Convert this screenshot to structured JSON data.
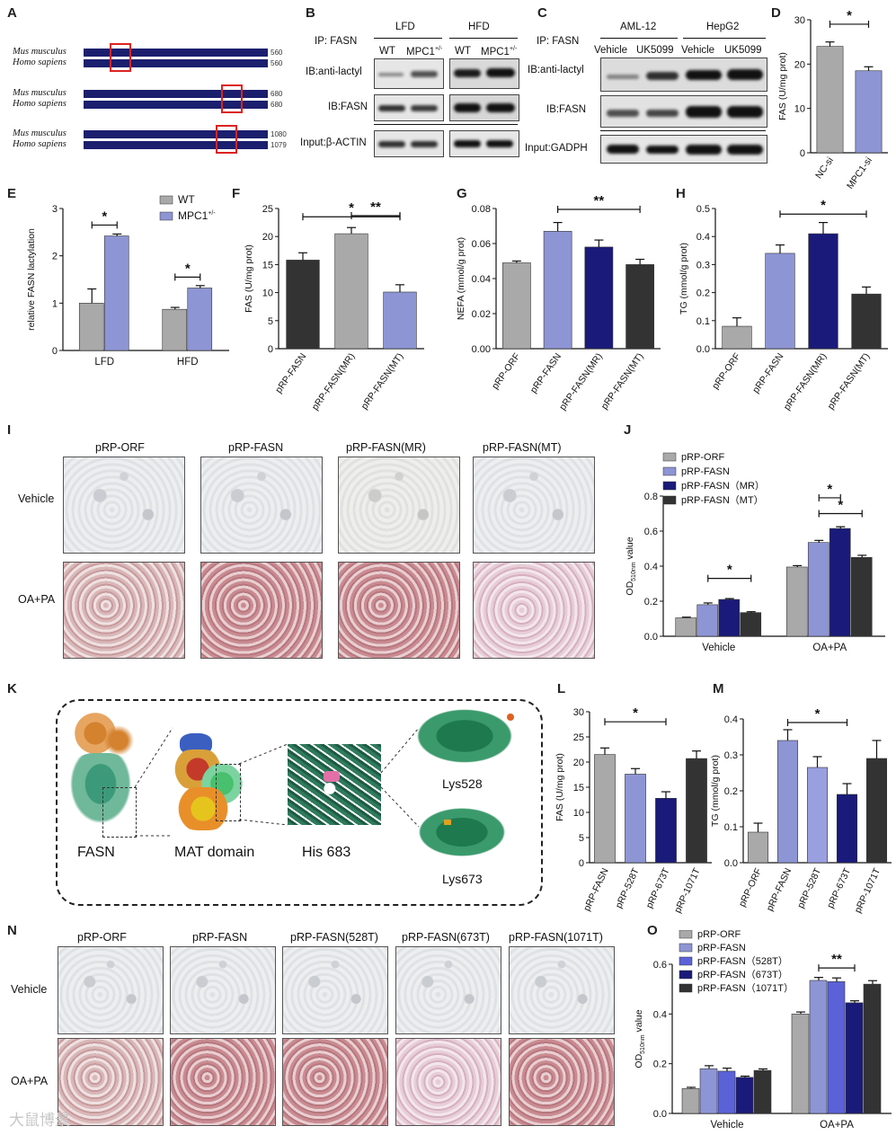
{
  "panel_labels": {
    "A": "A",
    "B": "B",
    "C": "C",
    "D": "D",
    "E": "E",
    "F": "F",
    "G": "G",
    "H": "H",
    "I": "I",
    "J": "J",
    "K": "K",
    "L": "L",
    "M": "M",
    "N": "N",
    "O": "O"
  },
  "panelA": {
    "rows": [
      {
        "species": "Mus musculus",
        "num": "560"
      },
      {
        "species": "Homo sapiens",
        "num": "560"
      },
      {
        "species": "Mus musculus",
        "num": "680"
      },
      {
        "species": "Homo sapiens",
        "num": "680"
      },
      {
        "species": "Mus musculus",
        "num": "1080"
      },
      {
        "species": "Homo sapiens",
        "num": "1079"
      }
    ]
  },
  "panelB": {
    "ip": "IP: FASN",
    "groups": [
      "LFD",
      "HFD"
    ],
    "lanes": [
      "WT",
      "MPC1",
      "WT",
      "MPC1"
    ],
    "sup": "+/-",
    "rows": [
      "IB:anti-lactyl",
      "IB:FASN",
      "Input:β-ACTIN"
    ]
  },
  "panelC": {
    "ip": "IP: FASN",
    "groups": [
      "AML-12",
      "HepG2"
    ],
    "lanes": [
      "Vehicle",
      "UK5099",
      "Vehicle",
      "UK5099"
    ],
    "rows": [
      "IB:anti-lactyl",
      "IB:FASN",
      "Input:GADPH"
    ]
  },
  "chart_data": [
    {
      "panel": "D",
      "type": "bar",
      "categories": [
        "NC-si",
        "MPC1-si"
      ],
      "values": [
        24,
        18.5
      ],
      "errors": [
        1,
        0.9
      ],
      "colors": [
        "#a9a9a9",
        "#8e95d4"
      ],
      "ylabel": "FAS (U/mg prot)",
      "ylim": [
        0,
        30
      ],
      "yticks": [
        "0",
        "10",
        "20",
        "30"
      ],
      "sig": [
        {
          "from": 0,
          "to": 1,
          "label": "*"
        }
      ]
    },
    {
      "panel": "E",
      "type": "bar",
      "categories": [
        "LFD",
        "HFD"
      ],
      "series": [
        {
          "name": "WT",
          "values": [
            1.0,
            0.87
          ],
          "errors": [
            0.3,
            0.04
          ],
          "color": "#a9a9a9"
        },
        {
          "name": "MPC1",
          "sup": "+/-",
          "values": [
            2.42,
            1.32
          ],
          "errors": [
            0.04,
            0.05
          ],
          "color": "#8e95d4"
        }
      ],
      "ylabel": "relative FASN lactylation",
      "ylim": [
        0,
        3
      ],
      "yticks": [
        "0",
        "1",
        "2",
        "3"
      ],
      "sig": [
        "*",
        "*"
      ]
    },
    {
      "panel": "F",
      "type": "bar",
      "categories": [
        "pRP-FASN",
        "pRP-FASN(MR)",
        "pRP-FASN(MT)"
      ],
      "values": [
        15.8,
        20.5,
        10.1
      ],
      "errors": [
        1.3,
        1.1,
        1.3
      ],
      "colors": [
        "#333333",
        "#a9a9a9",
        "#8e95d4"
      ],
      "ylabel": "FAS (U/mg prot)",
      "ylim": [
        0,
        25
      ],
      "yticks": [
        "0",
        "5",
        "10",
        "15",
        "20",
        "25"
      ],
      "sig": [
        {
          "from": 1,
          "to": 2,
          "label": "**"
        },
        {
          "from": 0,
          "to": 2,
          "label": "*"
        }
      ]
    },
    {
      "panel": "G",
      "type": "bar",
      "categories": [
        "pRP-ORF",
        "pRP-FASN",
        "pRP-FASN(MR)",
        "pRP-FASN(MT)"
      ],
      "values": [
        0.049,
        0.067,
        0.058,
        0.048
      ],
      "errors": [
        0.001,
        0.005,
        0.004,
        0.003
      ],
      "colors": [
        "#a9a9a9",
        "#8e95d4",
        "#1a1a7a",
        "#333333"
      ],
      "ylabel": "NEFA (mmol/g prot)",
      "ylim": [
        0,
        0.08
      ],
      "yticks": [
        "0.00",
        "0.02",
        "0.04",
        "0.06",
        "0.08"
      ],
      "sig": [
        {
          "from": 1,
          "to": 3,
          "label": "**"
        }
      ]
    },
    {
      "panel": "H",
      "type": "bar",
      "categories": [
        "pRP-ORF",
        "pRP-FASN",
        "pRP-FASN(MR)",
        "pRP-FASN(MT)"
      ],
      "values": [
        0.08,
        0.34,
        0.41,
        0.195
      ],
      "errors": [
        0.03,
        0.03,
        0.04,
        0.025
      ],
      "colors": [
        "#a9a9a9",
        "#8e95d4",
        "#1a1a7a",
        "#333333"
      ],
      "ylabel": "TG (mmol/g prot)",
      "ylim": [
        0,
        0.5
      ],
      "yticks": [
        "0.0",
        "0.1",
        "0.2",
        "0.3",
        "0.4",
        "0.5"
      ],
      "sig": [
        {
          "from": 1,
          "to": 3,
          "label": "*"
        }
      ]
    },
    {
      "panel": "J",
      "type": "bar",
      "categories": [
        "Vehicle",
        "OA+PA"
      ],
      "series": [
        {
          "name": "pRP-ORF",
          "values": [
            0.105,
            0.395
          ],
          "errors": [
            0.004,
            0.008
          ],
          "color": "#a9a9a9"
        },
        {
          "name": "pRP-FASN",
          "values": [
            0.18,
            0.535
          ],
          "errors": [
            0.01,
            0.012
          ],
          "color": "#8e95d4"
        },
        {
          "name": "pRP-FASN（MR）",
          "values": [
            0.21,
            0.615
          ],
          "errors": [
            0.005,
            0.01
          ],
          "color": "#1a1a7a"
        },
        {
          "name": "pRP-FASN（MT）",
          "values": [
            0.135,
            0.45
          ],
          "errors": [
            0.005,
            0.012
          ],
          "color": "#333333"
        }
      ],
      "ylabel": "OD value",
      "ylabel_main": "OD",
      "ylabel_sub": "510nm",
      "ylabel_tail": " value",
      "ylim": [
        0,
        0.8
      ],
      "yticks": [
        "0.0",
        "0.2",
        "0.4",
        "0.6",
        "0.8"
      ],
      "sig": [
        "*",
        "*",
        "*"
      ]
    },
    {
      "panel": "L",
      "type": "bar",
      "categories": [
        "pRP-FASN",
        "pRP-528T",
        "pRP-673T",
        "pRP-1071T"
      ],
      "values": [
        21.5,
        17.6,
        12.8,
        20.7
      ],
      "errors": [
        1.3,
        1.1,
        1.3,
        1.5
      ],
      "colors": [
        "#a9a9a9",
        "#8e95d4",
        "#1a1a7a",
        "#333333"
      ],
      "ylabel": "FAS (U/mg prot)",
      "ylim": [
        0,
        30
      ],
      "yticks": [
        "0",
        "5",
        "10",
        "15",
        "20",
        "25",
        "30"
      ],
      "sig": [
        {
          "from": 0,
          "to": 2,
          "label": "*"
        }
      ]
    },
    {
      "panel": "M",
      "type": "bar",
      "categories": [
        "pRP-ORF",
        "pRP-FASN",
        "pRP-528T",
        "pRP-673T",
        "pRP-1071T"
      ],
      "values": [
        0.085,
        0.34,
        0.265,
        0.19,
        0.29
      ],
      "errors": [
        0.025,
        0.03,
        0.03,
        0.03,
        0.05
      ],
      "colors": [
        "#a9a9a9",
        "#8e95d4",
        "#9a9fe0",
        "#1a1a7a",
        "#333333"
      ],
      "ylabel": "TG (mmol/g prot)",
      "ylim": [
        0,
        0.4
      ],
      "yticks": [
        "0.0",
        "0.1",
        "0.2",
        "0.3",
        "0.4"
      ],
      "sig": [
        {
          "from": 1,
          "to": 3,
          "label": "*"
        }
      ]
    },
    {
      "panel": "O",
      "type": "bar",
      "categories": [
        "Vehicle",
        "OA+PA"
      ],
      "series": [
        {
          "name": "pRP-ORF",
          "values": [
            0.1,
            0.4
          ],
          "errors": [
            0.005,
            0.008
          ],
          "color": "#a9a9a9"
        },
        {
          "name": "pRP-FASN",
          "values": [
            0.18,
            0.535
          ],
          "errors": [
            0.012,
            0.012
          ],
          "color": "#8e95d4"
        },
        {
          "name": "pRP-FASN（528T）",
          "values": [
            0.17,
            0.53
          ],
          "errors": [
            0.012,
            0.015
          ],
          "color": "#5b62d8"
        },
        {
          "name": "pRP-FASN（673T）",
          "values": [
            0.145,
            0.445
          ],
          "errors": [
            0.005,
            0.008
          ],
          "color": "#1a1a7a"
        },
        {
          "name": "pRP-FASN（1071T）",
          "values": [
            0.173,
            0.52
          ],
          "errors": [
            0.006,
            0.014
          ],
          "color": "#333333"
        }
      ],
      "ylabel": "OD value",
      "ylabel_main": "OD",
      "ylabel_sub": "510nm",
      "ylabel_tail": " value",
      "ylim": [
        0,
        0.6
      ],
      "yticks": [
        "0.0",
        "0.2",
        "0.4",
        "0.6"
      ],
      "sig": [
        "**"
      ]
    }
  ],
  "panelI": {
    "columns": [
      "pRP-ORF",
      "pRP-FASN",
      "pRP-FASN(MR)",
      "pRP-FASN(MT)"
    ],
    "rows": [
      "Vehicle",
      "OA+PA"
    ]
  },
  "panelK": {
    "labels": [
      "FASN",
      "MAT domain",
      "His 683",
      "Lys528",
      "Lys673"
    ]
  },
  "panelN": {
    "columns": [
      "pRP-ORF",
      "pRP-FASN",
      "pRP-FASN(528T)",
      "pRP-FASN(673T)",
      "pRP-FASN(1071T)"
    ],
    "rows": [
      "Vehicle",
      "OA+PA"
    ]
  },
  "watermark": "大鼠博景"
}
